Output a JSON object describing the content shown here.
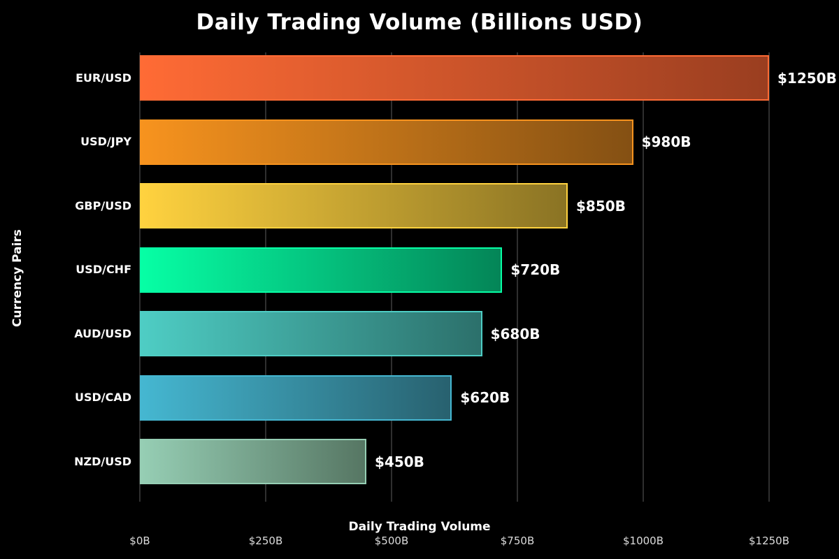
{
  "chart_data": {
    "type": "bar",
    "orientation": "horizontal",
    "title": "Daily Trading Volume (Billions USD)",
    "xlabel": "Daily Trading Volume",
    "ylabel": "Currency Pairs",
    "categories": [
      "EUR/USD",
      "USD/JPY",
      "GBP/USD",
      "USD/CHF",
      "AUD/USD",
      "USD/CAD",
      "NZD/USD"
    ],
    "values": [
      1250,
      980,
      850,
      720,
      680,
      620,
      450
    ],
    "value_labels": [
      "$1250B",
      "$980B",
      "$850B",
      "$720B",
      "$680B",
      "$620B",
      "$450B"
    ],
    "bar_colors_start": [
      "#FF6B35",
      "#F7931E",
      "#FFD23F",
      "#06FFA5",
      "#4ECDC4",
      "#45B7D1",
      "#96CEB4"
    ],
    "bar_colors_end": [
      "#9A3E20",
      "#845013",
      "#8A7324",
      "#048557",
      "#2C706B",
      "#28616F",
      "#567663"
    ],
    "xlim": [
      0,
      1250
    ],
    "x_tick_values": [
      0,
      250,
      500,
      750,
      1000,
      1250
    ],
    "x_tick_labels": [
      "$0B",
      "$250B",
      "$500B",
      "$750B",
      "$1000B",
      "$1250B"
    ],
    "grid": true,
    "legend": "none",
    "background_color": "#000000",
    "title_color": "#ffffff",
    "label_color": "#ffffff",
    "tick_label_color": "#dcdcdc",
    "gridline_color": "#2f2f2f"
  }
}
